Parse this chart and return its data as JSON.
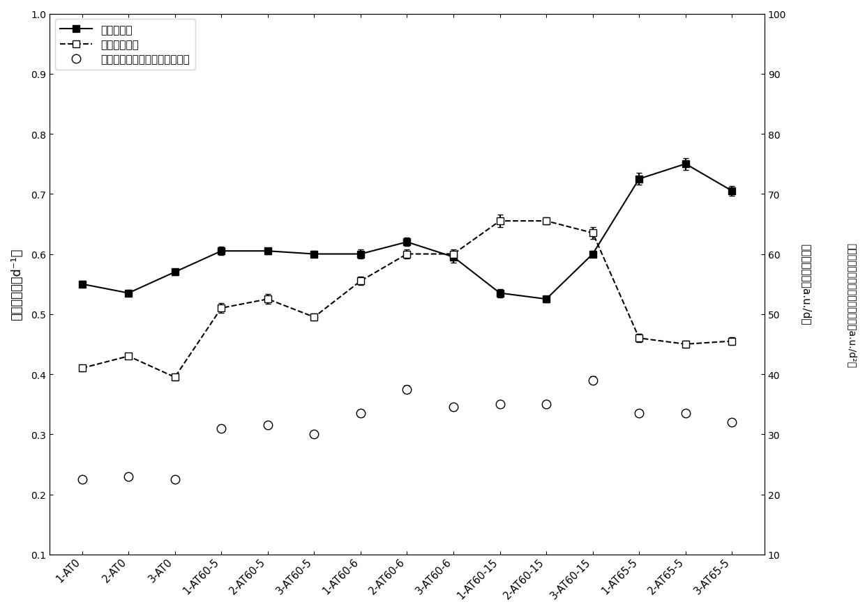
{
  "x_labels": [
    "1-AT0",
    "2-AT0",
    "3-AT0",
    "1-AT60-5",
    "2-AT60-5",
    "3-AT60-5",
    "1-AT60-6",
    "2-AT60-6",
    "3-AT60-6",
    "1-AT60-15",
    "2-AT60-15",
    "3-AT60-15",
    "1-AT65-5",
    "2-AT65-5",
    "3-AT65-5"
  ],
  "growth_rate": [
    0.55,
    0.535,
    0.57,
    0.605,
    0.605,
    0.6,
    0.6,
    0.62,
    0.595,
    0.535,
    0.525,
    0.6,
    0.725,
    0.75,
    0.705
  ],
  "growth_rate_err": [
    0.005,
    0.005,
    0.005,
    0.007,
    0.005,
    0.005,
    0.007,
    0.007,
    0.01,
    0.007,
    0.005,
    0.005,
    0.01,
    0.01,
    0.008
  ],
  "fluor_intensity": [
    0.41,
    0.43,
    0.395,
    0.51,
    0.525,
    0.495,
    0.555,
    0.6,
    0.6,
    0.655,
    0.655,
    0.635,
    0.46,
    0.45,
    0.455
  ],
  "fluor_intensity_err": [
    0.005,
    0.005,
    0.005,
    0.008,
    0.008,
    0.006,
    0.007,
    0.008,
    0.008,
    0.01,
    0.006,
    0.01,
    0.007,
    0.006,
    0.006
  ],
  "product": [
    0.225,
    0.23,
    0.225,
    0.31,
    0.315,
    0.3,
    0.335,
    0.375,
    0.345,
    0.35,
    0.35,
    0.39,
    0.335,
    0.335,
    0.32
  ],
  "product_err": [
    0.005,
    0.005,
    0.005,
    0.005,
    0.005,
    0.004,
    0.006,
    0.006,
    0.005,
    0.005,
    0.005,
    0.006,
    0.005,
    0.005,
    0.005
  ],
  "ylabel_left": "比生长速率（d⁻¹）",
  "ylabel_right1": "相对荧光强度（a.u./d）",
  "ylabel_right2": "比生长速率与相对荧光强度乘积（a.u./d²）",
  "legend1": "比生长速率",
  "legend2": "相对荧光强度",
  "legend3": "比生长速率与相对荧光强度乘积",
  "ylim_left": [
    0.1,
    1.0
  ],
  "ylim_right": [
    10,
    100
  ],
  "yticks_left": [
    0.1,
    0.2,
    0.3,
    0.4,
    0.5,
    0.6,
    0.7,
    0.8,
    0.9,
    1.0
  ],
  "yticks_right": [
    10,
    20,
    30,
    40,
    50,
    60,
    70,
    80,
    90,
    100
  ]
}
